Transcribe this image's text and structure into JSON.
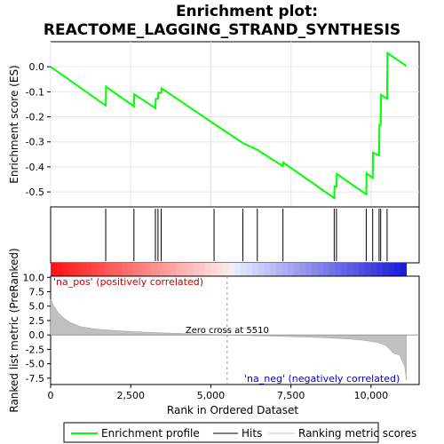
{
  "chart_data": {
    "type": "line",
    "title_line1": "Enrichment plot:",
    "title_line2": "REACTOME_LAGGING_STRAND_SYNTHESIS",
    "x_label": "Rank in Ordered Dataset",
    "x_lim": [
      0,
      11500
    ],
    "x_ticks": [
      0,
      2500,
      5000,
      7500,
      10000
    ],
    "x_tick_labels": [
      "0",
      "2,500",
      "5,000",
      "7,500",
      "10,000"
    ],
    "es_panel": {
      "ylabel": "Enrichment score (ES)",
      "ylim": [
        -0.56,
        0.1
      ],
      "yticks": [
        0.0,
        -0.1,
        -0.2,
        -0.3,
        -0.4,
        -0.5
      ],
      "ytick_labels": [
        "0.0",
        "-0.1",
        "-0.2",
        "-0.3",
        "-0.4",
        "-0.5"
      ],
      "series_name": "Enrichment profile",
      "color": "#00ff00",
      "points": [
        [
          0,
          0.0
        ],
        [
          1720,
          -0.155
        ],
        [
          1730,
          -0.08
        ],
        [
          2600,
          -0.158
        ],
        [
          2610,
          -0.11
        ],
        [
          3270,
          -0.165
        ],
        [
          3280,
          -0.128
        ],
        [
          3350,
          -0.128
        ],
        [
          3360,
          -0.104
        ],
        [
          3450,
          -0.104
        ],
        [
          3460,
          -0.086
        ],
        [
          5100,
          -0.228
        ],
        [
          6000,
          -0.305
        ],
        [
          6450,
          -0.332
        ],
        [
          7250,
          -0.397
        ],
        [
          7260,
          -0.383
        ],
        [
          8850,
          -0.525
        ],
        [
          8860,
          -0.478
        ],
        [
          8920,
          -0.478
        ],
        [
          8930,
          -0.428
        ],
        [
          9850,
          -0.51
        ],
        [
          9860,
          -0.425
        ],
        [
          10050,
          -0.445
        ],
        [
          10060,
          -0.343
        ],
        [
          10250,
          -0.355
        ],
        [
          10260,
          -0.232
        ],
        [
          10300,
          -0.232
        ],
        [
          10310,
          -0.112
        ],
        [
          10500,
          -0.128
        ],
        [
          10510,
          0.055
        ],
        [
          11100,
          0.003
        ]
      ]
    },
    "hits": [
      1720,
      2600,
      3270,
      3350,
      3450,
      5100,
      6000,
      6450,
      7250,
      8850,
      8920,
      9850,
      10050,
      10250,
      10300,
      10500
    ],
    "metric_panel": {
      "ylabel": "Ranked list metric (PreRanked)",
      "ylim": [
        -8.6,
        10.2
      ],
      "yticks": [
        10.0,
        7.5,
        5.0,
        2.5,
        0.0,
        -2.5,
        -5.0,
        -7.5
      ],
      "ytick_labels": [
        "10.0",
        "7.5",
        "5.0",
        "2.5",
        "0.0",
        "-2.5",
        "-5.0",
        "-7.5"
      ],
      "series_name": "Ranking metric scores",
      "profile": [
        [
          0,
          6.2
        ],
        [
          100,
          5.0
        ],
        [
          250,
          3.8
        ],
        [
          400,
          3.0
        ],
        [
          600,
          2.2
        ],
        [
          900,
          1.5
        ],
        [
          1300,
          1.1
        ],
        [
          1800,
          0.85
        ],
        [
          2500,
          0.6
        ],
        [
          3500,
          0.35
        ],
        [
          4500,
          0.18
        ],
        [
          5510,
          0.0
        ],
        [
          6500,
          -0.15
        ],
        [
          7500,
          -0.3
        ],
        [
          8500,
          -0.48
        ],
        [
          9300,
          -0.7
        ],
        [
          9800,
          -0.95
        ],
        [
          10200,
          -1.3
        ],
        [
          10450,
          -1.8
        ],
        [
          10600,
          -2.6
        ],
        [
          10700,
          -3.2
        ],
        [
          10900,
          -3.5
        ],
        [
          10950,
          -4.3
        ],
        [
          11050,
          -5.5
        ],
        [
          11100,
          -7.8
        ]
      ],
      "zero_cross_label": "Zero cross at 5510",
      "zero_cross_at": 5510,
      "pos_label": "'na_pos' (positively correlated)",
      "neg_label": "'na_neg' (negatively correlated)"
    },
    "legend": {
      "placement": "bottom",
      "entries": [
        {
          "label": "Enrichment profile",
          "color": "#00ff00"
        },
        {
          "label": "Hits",
          "color": "#000000"
        },
        {
          "label": "Ranking metric scores",
          "color": "#c0c0c0"
        }
      ]
    },
    "colors": {
      "es_line": "#00ff00",
      "hit": "#000000",
      "metric_fill": "#c0c0c0",
      "pos_text": "#cc0000",
      "neg_text": "#0000cc"
    }
  }
}
